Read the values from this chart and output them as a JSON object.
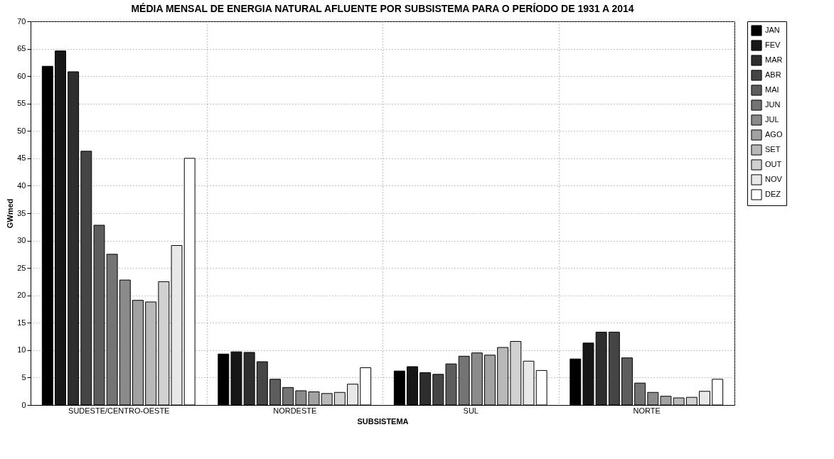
{
  "chart_data": {
    "type": "bar",
    "title": "MÉDIA MENSAL DE ENERGIA NATURAL AFLUENTE POR SUBSISTEMA PARA O PERÍODO DE 1931 A 2014",
    "xlabel": "SUBSISTEMA",
    "ylabel": "GWmed",
    "categories": [
      "SUDESTE/CENTRO-OESTE",
      "NORDESTE",
      "SUL",
      "NORTE"
    ],
    "series": [
      {
        "name": "JAN",
        "color": "#000000",
        "values": [
          61.8,
          9.3,
          6.2,
          8.4
        ]
      },
      {
        "name": "FEV",
        "color": "#171717",
        "values": [
          64.6,
          9.7,
          7.0,
          11.3
        ]
      },
      {
        "name": "MAR",
        "color": "#2e2e2e",
        "values": [
          60.8,
          9.6,
          5.9,
          13.3
        ]
      },
      {
        "name": "ABR",
        "color": "#454545",
        "values": [
          46.3,
          7.9,
          5.6,
          13.3
        ]
      },
      {
        "name": "MAI",
        "color": "#5d5d5d",
        "values": [
          32.8,
          4.7,
          7.5,
          8.6
        ]
      },
      {
        "name": "JUN",
        "color": "#747474",
        "values": [
          27.5,
          3.2,
          8.9,
          4.0
        ]
      },
      {
        "name": "JUL",
        "color": "#8b8b8b",
        "values": [
          22.8,
          2.6,
          9.5,
          2.3
        ]
      },
      {
        "name": "AGO",
        "color": "#a2a2a2",
        "values": [
          19.1,
          2.4,
          9.1,
          1.6
        ]
      },
      {
        "name": "SET",
        "color": "#b9b9b9",
        "values": [
          18.8,
          2.1,
          10.5,
          1.3
        ]
      },
      {
        "name": "OUT",
        "color": "#d1d1d1",
        "values": [
          22.5,
          2.3,
          11.6,
          1.4
        ]
      },
      {
        "name": "NOV",
        "color": "#e8e8e8",
        "values": [
          29.1,
          3.8,
          8.0,
          2.5
        ]
      },
      {
        "name": "DEZ",
        "color": "#ffffff",
        "values": [
          45.0,
          6.8,
          6.3,
          4.7
        ]
      }
    ],
    "ylim": [
      0,
      70
    ],
    "yticks": [
      0,
      5,
      10,
      15,
      20,
      25,
      30,
      35,
      40,
      45,
      50,
      55,
      60,
      65,
      70
    ],
    "grid": true,
    "legend": "top right"
  }
}
